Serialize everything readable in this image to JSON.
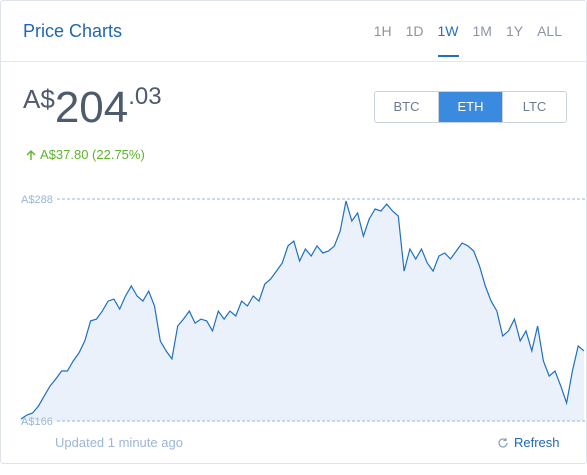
{
  "header": {
    "title": "Price Charts",
    "tabs": [
      "1H",
      "1D",
      "1W",
      "1M",
      "1Y",
      "ALL"
    ],
    "active_tab": 2
  },
  "price": {
    "currency": "A$",
    "whole": "204",
    "cents": ".03"
  },
  "currencies": {
    "options": [
      "BTC",
      "ETH",
      "LTC"
    ],
    "active": 1
  },
  "change": "A$37.80 (22.75%)",
  "chart_data": {
    "type": "area",
    "color": "#1f6fc5",
    "fill": "#eaf1fa",
    "ylim": [
      166,
      288
    ],
    "yticks": [
      {
        "value": 288,
        "label": "A$288"
      },
      {
        "value": 166,
        "label": "A$166"
      }
    ],
    "values": [
      167.1,
      169.3,
      170.4,
      174.2,
      179.7,
      185.2,
      189.1,
      193.5,
      193.5,
      199,
      203.4,
      210,
      221,
      222,
      226.4,
      231.9,
      233,
      227.5,
      234.7,
      240.2,
      234.7,
      231.9,
      237.4,
      229.2,
      210,
      204.5,
      200.1,
      218.2,
      222,
      226.4,
      219.8,
      222,
      221,
      215.5,
      226.4,
      222,
      226.4,
      223.7,
      231.9,
      229.2,
      234.7,
      231.9,
      241.3,
      244,
      248.4,
      252.8,
      262.2,
      264.9,
      253.9,
      260.5,
      256.7,
      262.2,
      258.3,
      259.4,
      262.2,
      270.4,
      286.9,
      275.9,
      280.3,
      267.6,
      277,
      282.5,
      281.4,
      285.2,
      281.4,
      278.6,
      248.4,
      260.5,
      255,
      260.5,
      252.8,
      248.4,
      256.7,
      258.3,
      255,
      259.4,
      263.8,
      262.2,
      259.4,
      251.2,
      240.2,
      231.9,
      226.4,
      212.7,
      215.5,
      222,
      210,
      215.5,
      204.5,
      218.2,
      199,
      190.7,
      193.5,
      185.2,
      175.9,
      193.5,
      207.2,
      204.5
    ]
  },
  "footer": {
    "updated": "Updated 1 minute ago",
    "refresh": "Refresh"
  }
}
